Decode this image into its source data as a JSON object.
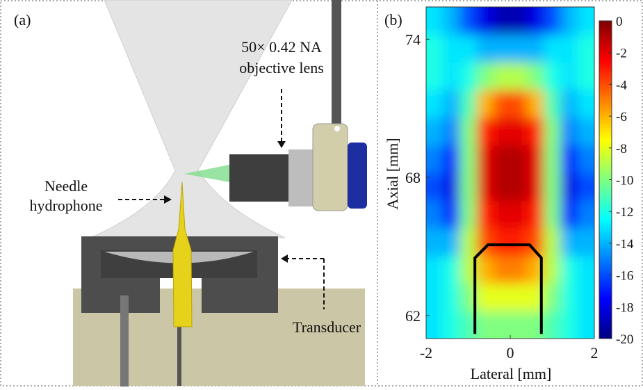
{
  "panel_a": {
    "label": "(a)",
    "lens_label": [
      "50× 0.42 NA",
      "objective lens"
    ],
    "needle_label": [
      "Needle",
      "hydrophone"
    ],
    "transducer_label": "Transducer"
  },
  "chart_data": {
    "type": "heatmap",
    "panel_label": "(b)",
    "xlabel": "Lateral [mm]",
    "ylabel": "Axial [mm]",
    "xlim": [
      -2,
      2
    ],
    "ylim": [
      61,
      75.4
    ],
    "xticks": [
      -2,
      0,
      2
    ],
    "yticks": [
      62,
      68,
      74
    ],
    "x": [
      -1.8,
      -1.4,
      -1.0,
      -0.6,
      -0.2,
      0.2,
      0.6,
      1.0,
      1.4,
      1.8
    ],
    "y": [
      61.6,
      62.8,
      64.0,
      65.2,
      66.4,
      67.6,
      68.8,
      70.0,
      71.2,
      72.4,
      73.6,
      74.8
    ],
    "z": [
      [
        -13,
        -12,
        -11,
        -10,
        -10,
        -10,
        -10,
        -11,
        -12,
        -13
      ],
      [
        -13,
        -12,
        -10,
        -8,
        -8,
        -8,
        -8,
        -10,
        -12,
        -13
      ],
      [
        -13,
        -12,
        -9,
        -6,
        -5,
        -5,
        -6,
        -9,
        -12,
        -13
      ],
      [
        -14,
        -14,
        -9,
        -4,
        -3,
        -3,
        -4,
        -9,
        -14,
        -14
      ],
      [
        -15,
        -17,
        -10,
        -3,
        -2,
        -2,
        -3,
        -10,
        -17,
        -15
      ],
      [
        -16,
        -18,
        -10,
        -2,
        -1,
        -1,
        -2,
        -10,
        -18,
        -16
      ],
      [
        -15,
        -17,
        -10,
        -2,
        -1,
        -1,
        -2,
        -10,
        -17,
        -15
      ],
      [
        -14,
        -15,
        -10,
        -3,
        -2,
        -2,
        -3,
        -10,
        -15,
        -14
      ],
      [
        -13,
        -14,
        -11,
        -6,
        -4,
        -4,
        -6,
        -11,
        -14,
        -13
      ],
      [
        -12,
        -13,
        -12,
        -10,
        -9,
        -9,
        -10,
        -12,
        -13,
        -12
      ],
      [
        -12,
        -13,
        -13,
        -14,
        -14,
        -14,
        -14,
        -13,
        -13,
        -12
      ],
      [
        -13,
        -14,
        -16,
        -18,
        -19,
        -19,
        -18,
        -16,
        -14,
        -13
      ]
    ],
    "clim": [
      -20,
      0
    ],
    "cticks": [
      0,
      -2,
      -4,
      -6,
      -8,
      -10,
      -12,
      -14,
      -16,
      -18,
      -20
    ],
    "colormap": "jet",
    "outline": {
      "x": [
        -0.84,
        -0.84,
        -0.53,
        0.46,
        0.74,
        0.74
      ],
      "y": [
        61.2,
        64.5,
        65.07,
        65.07,
        64.5,
        61.2
      ]
    }
  }
}
